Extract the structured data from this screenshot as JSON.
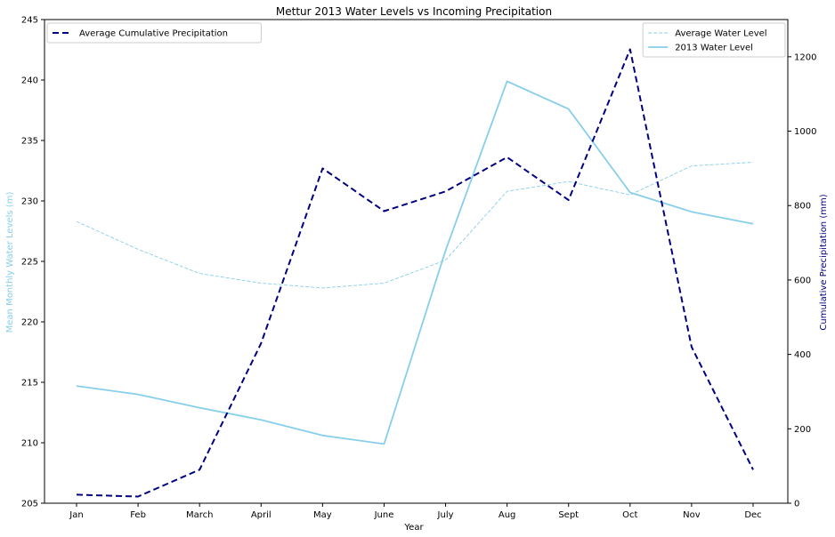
{
  "chart_data": {
    "type": "line",
    "title": "Mettur 2013 Water Levels vs Incoming Precipitation",
    "xlabel": "Year",
    "ylabel": "Mean Monthly Water Levels (m)",
    "y2label": "Cumulative Precipitation (mm)",
    "categories": [
      "Jan",
      "Feb",
      "March",
      "April",
      "May",
      "June",
      "July",
      "Aug",
      "Sept",
      "Oct",
      "Nov",
      "Dec"
    ],
    "ylim": [
      205,
      245
    ],
    "yticks": [
      205,
      210,
      215,
      220,
      225,
      230,
      235,
      240,
      245
    ],
    "y2lim": [
      0,
      1300
    ],
    "y2ticks": [
      0,
      200,
      400,
      600,
      800,
      1000,
      1200
    ],
    "grid": false,
    "series": [
      {
        "name": "Average Water Level",
        "axis": "left",
        "style": "dashed-thin",
        "color": "#87ceeb",
        "values": [
          228.3,
          226.0,
          224.0,
          223.2,
          222.8,
          223.2,
          225.1,
          230.8,
          231.6,
          230.5,
          232.9,
          233.2
        ]
      },
      {
        "name": "2013 Water Level",
        "axis": "left",
        "style": "solid",
        "color": "#87ceeb",
        "values": [
          214.7,
          214.0,
          212.9,
          211.9,
          210.6,
          209.9,
          225.9,
          239.9,
          237.6,
          230.7,
          229.1,
          228.1
        ]
      },
      {
        "name": "Average Cumulative Precipitation",
        "axis": "right",
        "style": "dashed-thick",
        "color": "#000080",
        "values": [
          23,
          18,
          90,
          430,
          900,
          785,
          838,
          930,
          815,
          1220,
          420,
          90
        ]
      }
    ],
    "legends": [
      {
        "placement": "top-left",
        "entries": [
          "Average Cumulative Precipitation"
        ]
      },
      {
        "placement": "top-right",
        "entries": [
          "Average Water Level",
          "2013 Water Level"
        ]
      }
    ]
  }
}
